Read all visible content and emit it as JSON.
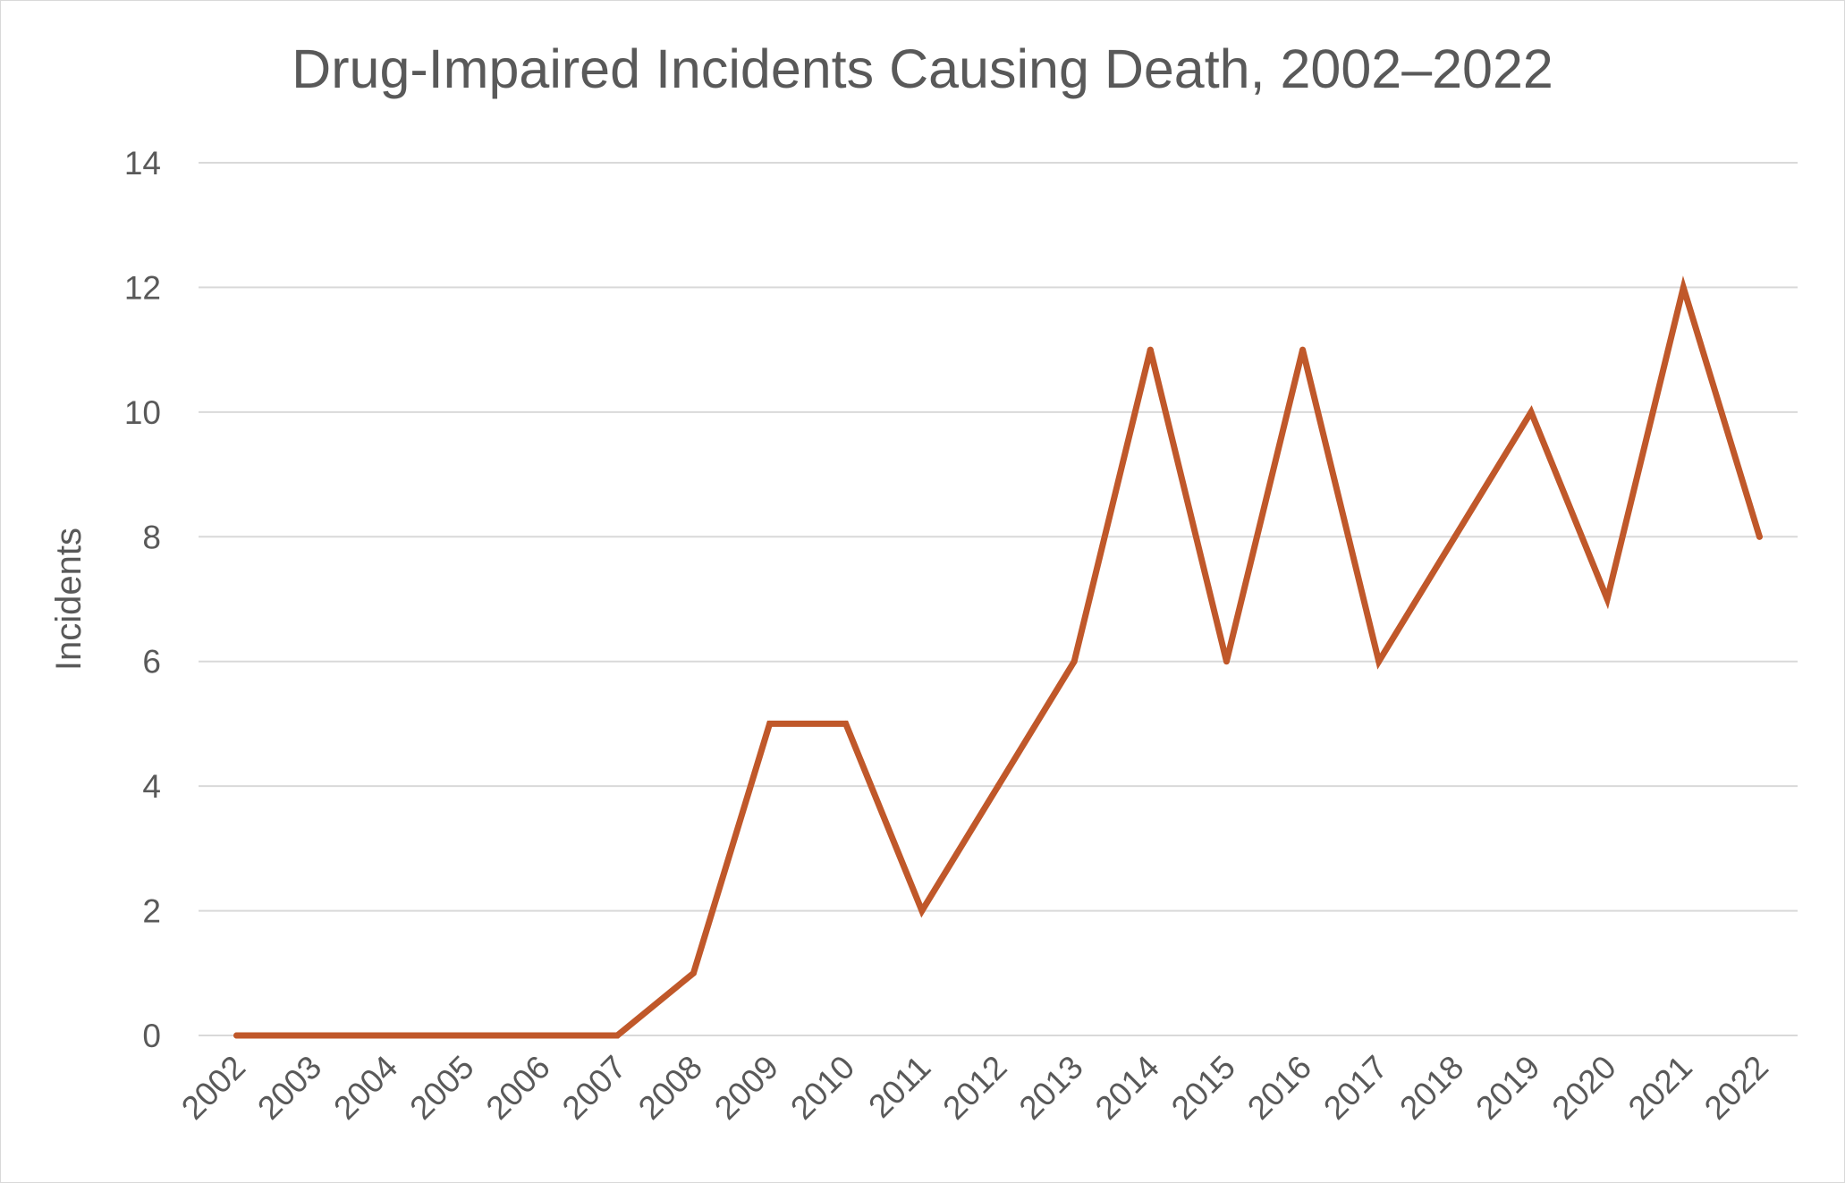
{
  "chart_data": {
    "type": "line",
    "title": "Drug-Impaired Incidents Causing Death, 2002–2022",
    "xlabel": "",
    "ylabel": "Incidents",
    "ylim": [
      0,
      14
    ],
    "yticks": [
      0,
      2,
      4,
      6,
      8,
      10,
      12,
      14
    ],
    "grid": true,
    "legend": "none",
    "categories": [
      "2002",
      "2003",
      "2004",
      "2005",
      "2006",
      "2007",
      "2008",
      "2009",
      "2010",
      "2011",
      "2012",
      "2013",
      "2014",
      "2015",
      "2016",
      "2017",
      "2018",
      "2019",
      "2020",
      "2021",
      "2022"
    ],
    "series": [
      {
        "values": [
          0,
          0,
          0,
          0,
          0,
          0,
          1,
          5,
          5,
          2,
          4,
          6,
          11,
          6,
          11,
          6,
          8,
          10,
          7,
          12,
          8
        ],
        "color": "#c0582a"
      }
    ]
  }
}
